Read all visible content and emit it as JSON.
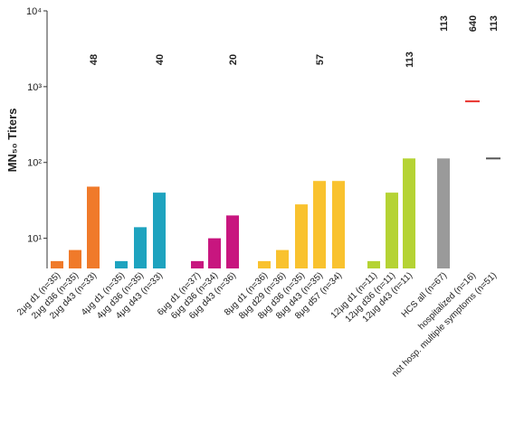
{
  "chart_data": {
    "type": "bar",
    "y_label": "MN₅₀ Titers",
    "log_scale": true,
    "ylim": [
      4,
      10000
    ],
    "yticks": [
      {
        "value": 10,
        "label": "10¹"
      },
      {
        "value": 100,
        "label": "10²"
      },
      {
        "value": 1000,
        "label": "10³"
      },
      {
        "value": 10000,
        "label": "10⁴"
      }
    ],
    "bars": [
      {
        "label": "2μg d1 (n=35)",
        "value": 5,
        "color": "#f07a2a",
        "kind": "bar"
      },
      {
        "label": "2μg d36 (n=35)",
        "value": 7,
        "color": "#f07a2a",
        "kind": "bar"
      },
      {
        "label": "2μg d43 (n=33)",
        "value": 48,
        "color": "#f07a2a",
        "kind": "bar",
        "annotate": true,
        "annotation_color": "#111"
      },
      {
        "label": "4μg d1 (n=35)",
        "value": 5,
        "color": "#1ea3bf",
        "kind": "bar"
      },
      {
        "label": "4μg d36 (n=35)",
        "value": 14,
        "color": "#1ea3bf",
        "kind": "bar"
      },
      {
        "label": "4μg d43 (n=33)",
        "value": 40,
        "color": "#1ea3bf",
        "kind": "bar",
        "annotate": true,
        "annotation_color": "#111"
      },
      {
        "label": "6μg d1 (n=37)",
        "value": 5,
        "color": "#c8167f",
        "kind": "bar"
      },
      {
        "label": "6μg d36 (n=34)",
        "value": 10,
        "color": "#c8167f",
        "kind": "bar"
      },
      {
        "label": "6μg d43 (n=36)",
        "value": 20,
        "color": "#c8167f",
        "kind": "bar",
        "annotate": true,
        "annotation_color": "#111"
      },
      {
        "label": "8μg d1 (n=36)",
        "value": 5,
        "color": "#f9c22e",
        "kind": "bar"
      },
      {
        "label": "8μg d29 (n=36)",
        "value": 7,
        "color": "#f9c22e",
        "kind": "bar"
      },
      {
        "label": "8μg d36 (n=35)",
        "value": 28,
        "color": "#f9c22e",
        "kind": "bar"
      },
      {
        "label": "8μg d43 (n=35)",
        "value": 57,
        "color": "#f9c22e",
        "kind": "bar",
        "annotate": true,
        "annotation_color": "#111"
      },
      {
        "label": "8μg d57 (n=34)",
        "value": 57,
        "color": "#f9c22e",
        "kind": "bar"
      },
      {
        "label": "12μg d1 (n=11)",
        "value": 5,
        "color": "#b5d334",
        "kind": "bar"
      },
      {
        "label": "12μg d36 (n=11)",
        "value": 40,
        "color": "#b5d334",
        "kind": "bar"
      },
      {
        "label": "12μg d43 (n=11)",
        "value": 113,
        "color": "#b5d334",
        "kind": "bar",
        "annotate": true,
        "annotation_color": "#111"
      },
      {
        "label": "HCS all (n=67)",
        "value": 113,
        "color": "#9a9a9a",
        "kind": "bar",
        "annotate": true,
        "annotation_color": "#1f3c9a"
      },
      {
        "label": "hospitalized (n=16)",
        "value": 640,
        "color": "#e8302b",
        "kind": "line",
        "annotate": true,
        "annotation_color": "#6b7fb8"
      },
      {
        "label": "not hosp. multiple symptoms (n=51)",
        "value": 113,
        "color": "#555555",
        "kind": "line",
        "annotate": true,
        "annotation_color": "#6b7fb8"
      }
    ]
  }
}
